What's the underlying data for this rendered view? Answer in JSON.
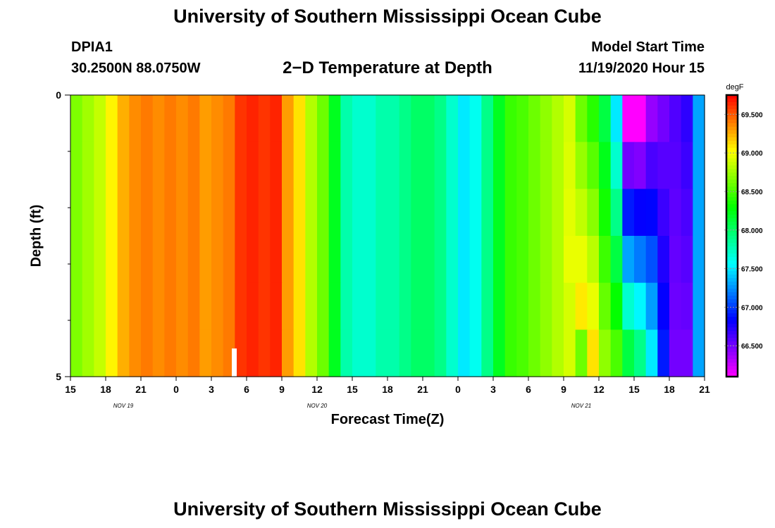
{
  "header": {
    "title": "University of Southern Mississippi Ocean Cube",
    "station_id": "DPIA1",
    "station_coords": "30.2500N 88.0750W",
    "plot_title": "2−D Temperature at Depth",
    "model_start_label": "Model Start Time",
    "model_start_value": "11/19/2020 Hour 15"
  },
  "footer": {
    "title": "University of Southern Mississippi Ocean Cube"
  },
  "chart_data": {
    "type": "heatmap",
    "title": "2−D Temperature at Depth",
    "xlabel": "Forecast Time(Z)",
    "ylabel": "Depth (ft)",
    "x_tick_labels": [
      "15",
      "18",
      "21",
      "0",
      "3",
      "6",
      "9",
      "12",
      "15",
      "18",
      "21",
      "0",
      "3",
      "6",
      "9",
      "12",
      "15",
      "18",
      "21"
    ],
    "date_labels": [
      {
        "label": "NOV 19",
        "tick_index": 1.5
      },
      {
        "label": "NOV 20",
        "tick_index": 7
      },
      {
        "label": "NOV 21",
        "tick_index": 14.5
      }
    ],
    "x_range_hours": [
      0,
      54
    ],
    "y_ticks": [
      {
        "value": 0,
        "label": "0"
      },
      {
        "value": 5,
        "label": "5"
      }
    ],
    "y_range_ft": [
      0,
      5
    ],
    "colorbar": {
      "unit": "degF",
      "min": 66.1,
      "max": 69.75,
      "ticks": [
        "66.500",
        "67.000",
        "67.500",
        "68.000",
        "68.500",
        "69.000",
        "69.500"
      ],
      "tick_values": [
        66.5,
        67.0,
        67.5,
        68.0,
        68.5,
        69.0,
        69.5
      ]
    },
    "time_hours": [
      0,
      1,
      2,
      3,
      4,
      5,
      6,
      7,
      8,
      9,
      10,
      11,
      12,
      13,
      14,
      15,
      16,
      17,
      18,
      19,
      20,
      21,
      22,
      23,
      24,
      25,
      26,
      27,
      28,
      29,
      30,
      31,
      32,
      33,
      34,
      35,
      36,
      37,
      38,
      39,
      40,
      41,
      42,
      43,
      44,
      45,
      46,
      47,
      48,
      49,
      50,
      51,
      52,
      53
    ],
    "depth_layers_ft": [
      0,
      1,
      2,
      3,
      4,
      5
    ],
    "surface_temps_degF": [
      68.65,
      68.75,
      68.85,
      69.05,
      69.25,
      69.35,
      69.4,
      69.35,
      69.4,
      69.35,
      69.4,
      69.3,
      69.35,
      69.4,
      69.6,
      69.65,
      69.6,
      69.65,
      69.3,
      69.1,
      68.8,
      68.6,
      68.2,
      67.8,
      67.7,
      67.7,
      67.8,
      67.8,
      67.9,
      68.0,
      68.0,
      67.9,
      67.7,
      67.5,
      67.6,
      67.9,
      68.2,
      68.45,
      68.5,
      68.6,
      68.7,
      68.8,
      68.9,
      68.6,
      68.4,
      68.1,
      67.5,
      66.1,
      66.1,
      66.4,
      66.5,
      66.6,
      66.7,
      67.3
    ],
    "deep_temps_degF": [
      68.65,
      68.75,
      68.85,
      69.05,
      69.25,
      69.35,
      69.4,
      69.35,
      69.4,
      69.35,
      69.4,
      69.3,
      69.35,
      69.4,
      69.6,
      69.65,
      69.6,
      69.65,
      69.3,
      69.1,
      68.8,
      68.6,
      68.2,
      67.8,
      67.7,
      67.7,
      67.8,
      67.8,
      67.9,
      68.0,
      68.0,
      67.9,
      67.7,
      67.5,
      67.6,
      67.9,
      68.2,
      68.45,
      68.5,
      68.6,
      68.7,
      68.8,
      69.0,
      69.2,
      69.1,
      68.7,
      68.5,
      68.1,
      67.9,
      67.5,
      66.9,
      66.5,
      66.5,
      67.3
    ],
    "cooling_onset_hour": {
      "surface": 38.8,
      "deep": 44.0
    }
  }
}
